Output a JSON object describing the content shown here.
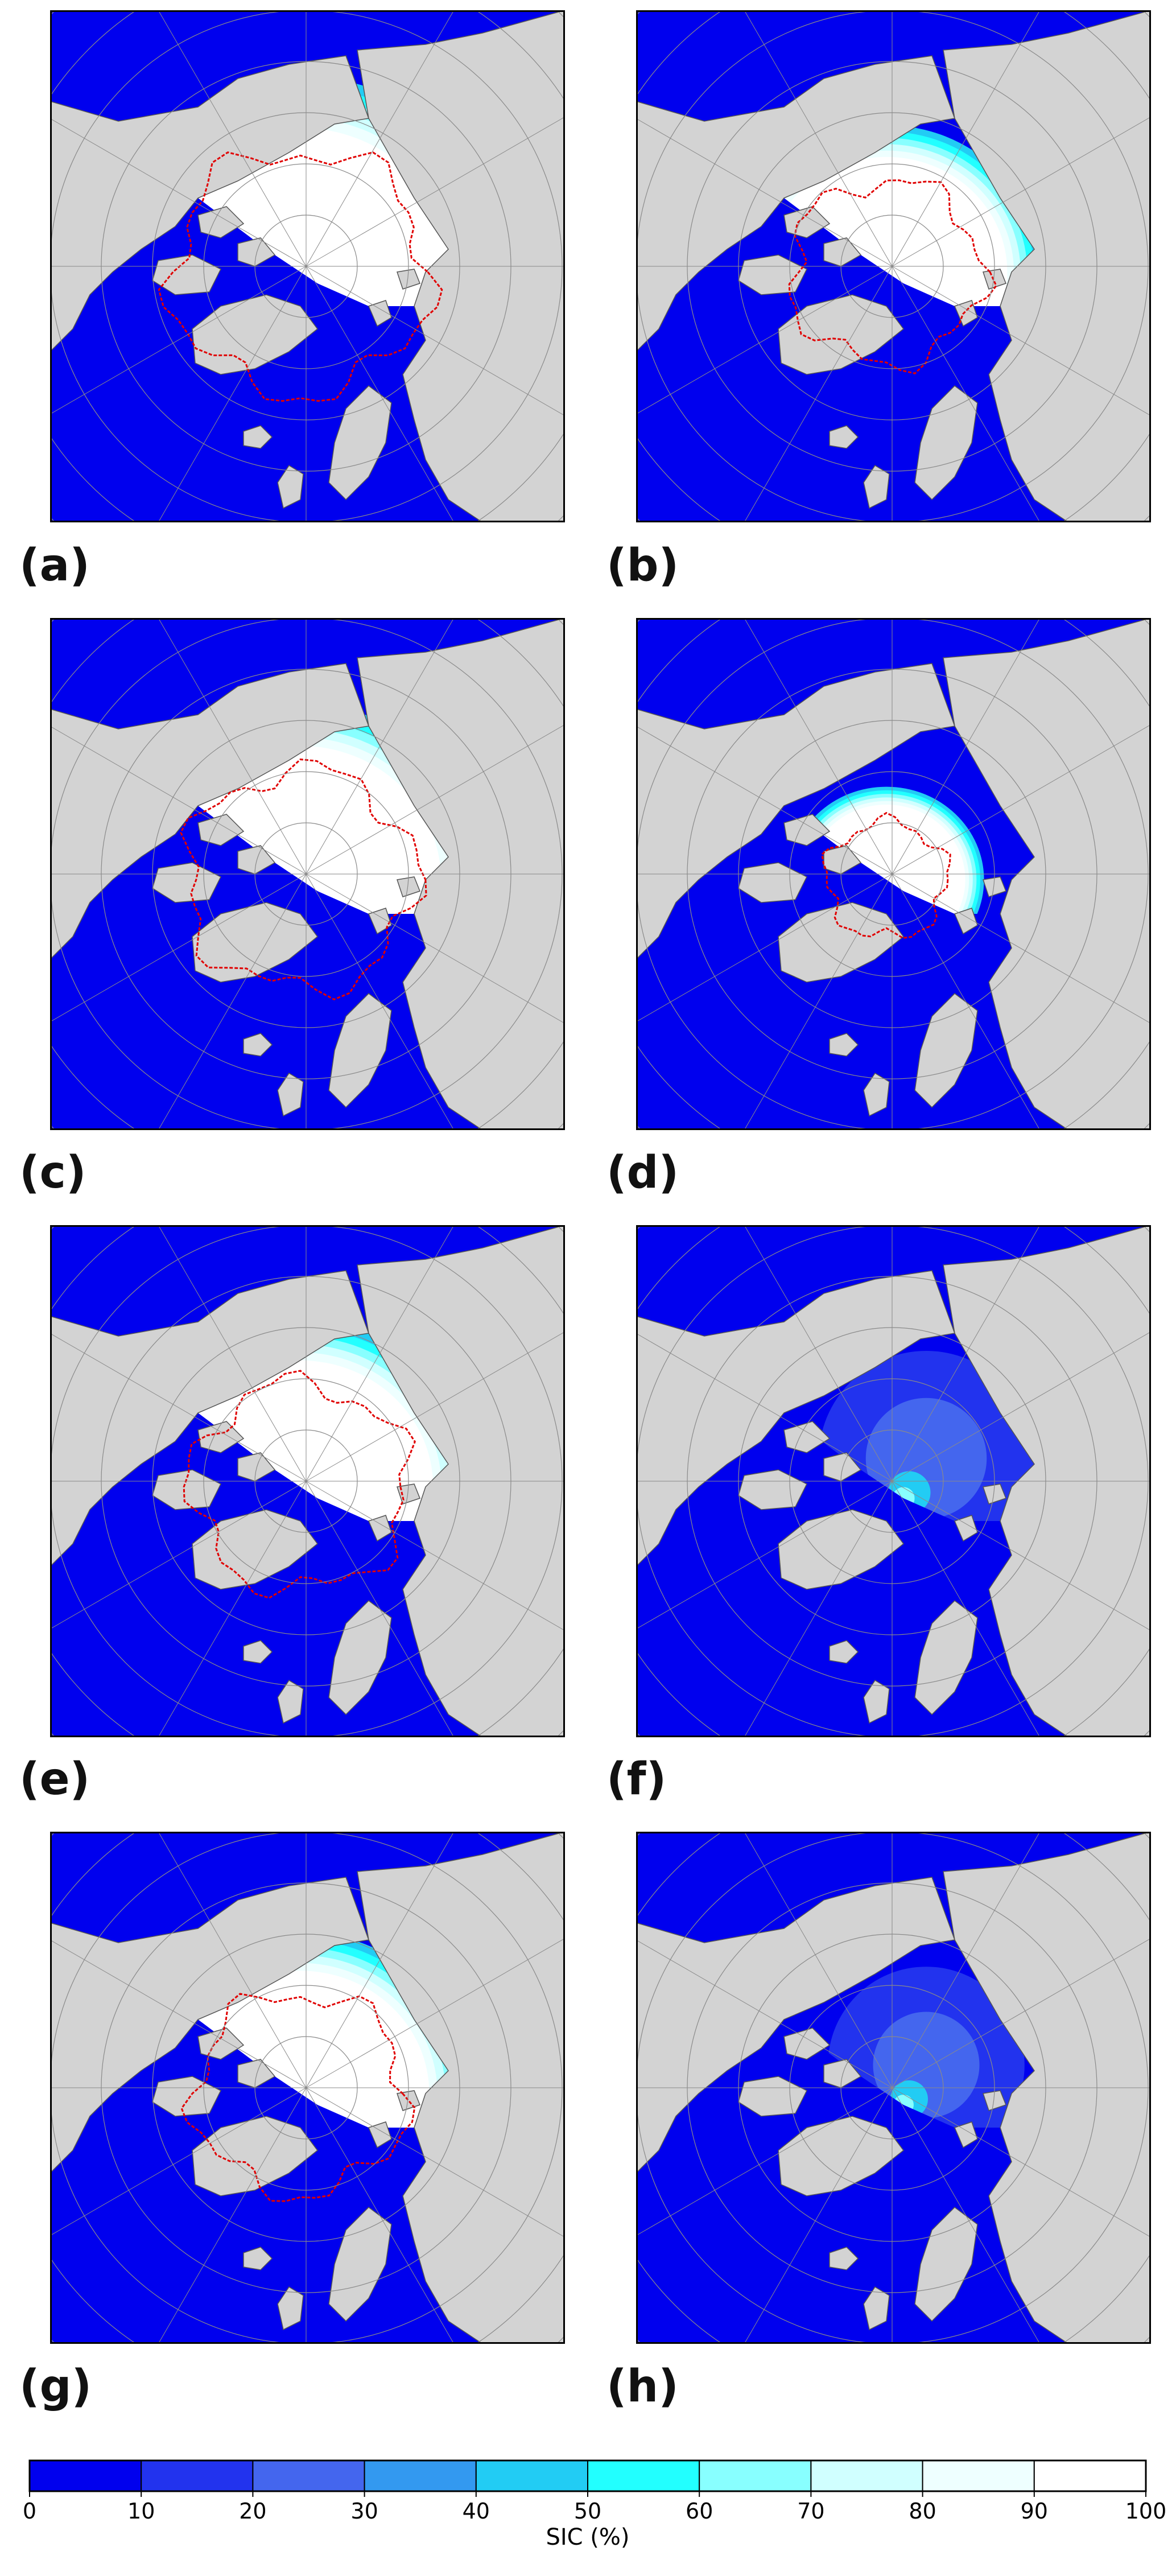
{
  "panels": [
    {
      "label": "(a)",
      "ice_extent": 0.8,
      "marginal_band": 0.55,
      "reduction": 0.0,
      "has_contour": true
    },
    {
      "label": "(b)",
      "ice_extent": 0.6,
      "marginal_band": 0.45,
      "reduction": 0.0,
      "has_contour": true
    },
    {
      "label": "(c)",
      "ice_extent": 0.72,
      "marginal_band": 0.5,
      "reduction": 0.0,
      "has_contour": true
    },
    {
      "label": "(d)",
      "ice_extent": 0.38,
      "marginal_band": 0.4,
      "reduction": 0.0,
      "has_contour": true
    },
    {
      "label": "(e)",
      "ice_extent": 0.68,
      "marginal_band": 0.5,
      "reduction": 0.0,
      "has_contour": true
    },
    {
      "label": "(f)",
      "ice_extent": 0.22,
      "marginal_band": 0.3,
      "reduction": 0.75,
      "has_contour": false
    },
    {
      "label": "(g)",
      "ice_extent": 0.66,
      "marginal_band": 0.5,
      "reduction": 0.0,
      "has_contour": true
    },
    {
      "label": "(h)",
      "ice_extent": 0.1,
      "marginal_band": 0.2,
      "reduction": 0.9,
      "has_contour": false
    }
  ],
  "colors": {
    "land": "#d3d3d3",
    "coast": "#555555",
    "grid": "#8a8a8a",
    "contour": "#e00000",
    "frame": "#000000"
  },
  "colorbar": {
    "label": "SIC (%)",
    "ticks": [
      "0",
      "10",
      "20",
      "30",
      "40",
      "50",
      "60",
      "70",
      "80",
      "90",
      "100"
    ],
    "colors": [
      "#0000ee",
      "#2233ee",
      "#4466ee",
      "#3399f0",
      "#22ccf4",
      "#22ffff",
      "#88ffff",
      "#d0ffff",
      "#eeffff",
      "#ffffff"
    ]
  }
}
